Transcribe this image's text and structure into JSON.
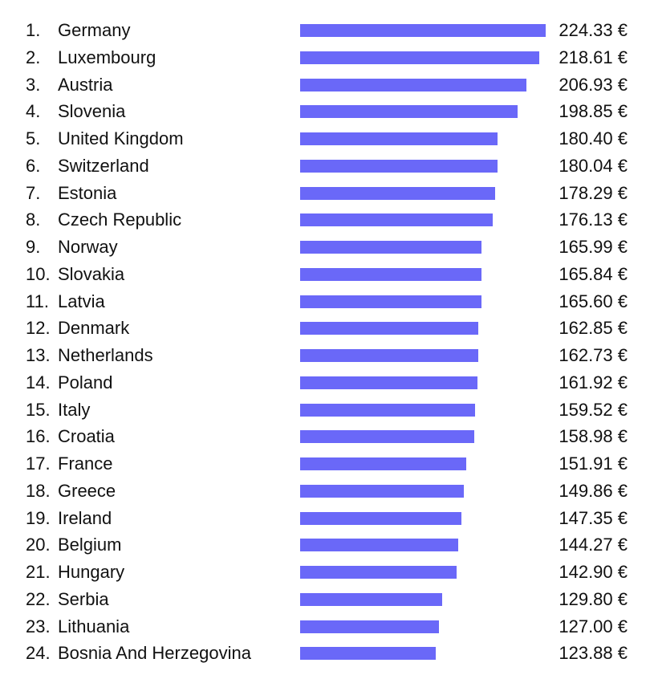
{
  "chart_data": {
    "type": "bar",
    "orientation": "horizontal",
    "bar_color": "#6a68f8",
    "xlim": [
      0,
      224.33
    ],
    "unit": "€",
    "ranks": [
      "1.",
      "2.",
      "3.",
      "4.",
      "5.",
      "6.",
      "7.",
      "8.",
      "9.",
      "10.",
      "11.",
      "12.",
      "13.",
      "14.",
      "15.",
      "16.",
      "17.",
      "18.",
      "19.",
      "20.",
      "21.",
      "22.",
      "23.",
      "24."
    ],
    "categories": [
      "Germany",
      "Luxembourg",
      "Austria",
      "Slovenia",
      "United Kingdom",
      "Switzerland",
      "Estonia",
      "Czech Republic",
      "Norway",
      "Slovakia",
      "Latvia",
      "Denmark",
      "Netherlands",
      "Poland",
      "Italy",
      "Croatia",
      "France",
      "Greece",
      "Ireland",
      "Belgium",
      "Hungary",
      "Serbia",
      "Lithuania",
      "Bosnia And Herzegovina"
    ],
    "values": [
      224.33,
      218.61,
      206.93,
      198.85,
      180.4,
      180.04,
      178.29,
      176.13,
      165.99,
      165.84,
      165.6,
      162.85,
      162.73,
      161.92,
      159.52,
      158.98,
      151.91,
      149.86,
      147.35,
      144.27,
      142.9,
      129.8,
      127.0,
      123.88
    ],
    "value_labels": [
      "224.33 €",
      "218.61 €",
      "206.93 €",
      "198.85 €",
      "180.40 €",
      "180.04 €",
      "178.29 €",
      "176.13 €",
      "165.99 €",
      "165.84 €",
      "165.60 €",
      "162.85 €",
      "162.73 €",
      "161.92 €",
      "159.52 €",
      "158.98 €",
      "151.91 €",
      "149.86 €",
      "147.35 €",
      "144.27 €",
      "142.90 €",
      "129.80 €",
      "127.00 €",
      "123.88 €"
    ]
  }
}
